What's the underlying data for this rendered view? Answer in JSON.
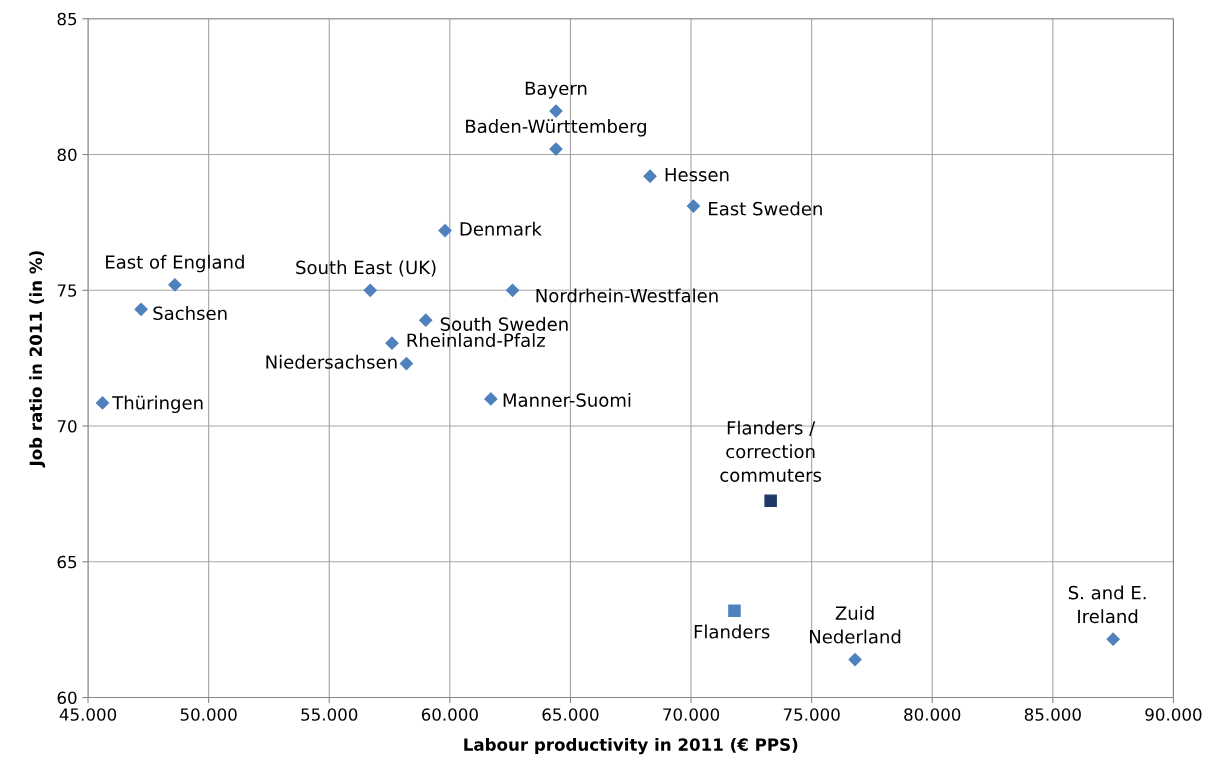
{
  "chart_data": {
    "type": "scatter",
    "xlabel": "Labour productivity in 2011 (€ PPS)",
    "ylabel": "Job ratio in 2011 (in %)",
    "xlim": [
      45000,
      90000
    ],
    "ylim": [
      60,
      85
    ],
    "xticks": [
      {
        "value": 45000,
        "label": "45.000"
      },
      {
        "value": 50000,
        "label": "50.000"
      },
      {
        "value": 55000,
        "label": "55.000"
      },
      {
        "value": 60000,
        "label": "60.000"
      },
      {
        "value": 65000,
        "label": "65.000"
      },
      {
        "value": 70000,
        "label": "70.000"
      },
      {
        "value": 75000,
        "label": "75.000"
      },
      {
        "value": 80000,
        "label": "80.000"
      },
      {
        "value": 85000,
        "label": "85.000"
      },
      {
        "value": 90000,
        "label": "90.000"
      }
    ],
    "yticks": [
      60,
      65,
      70,
      75,
      80,
      85
    ],
    "grid": true,
    "series": [
      {
        "color": "#4f81bd",
        "marker": "diamond",
        "x": [
          64400,
          64400,
          68300,
          70100,
          59800,
          48600,
          47200,
          56700,
          62600,
          59000,
          57600,
          58200,
          45600,
          61700,
          76800,
          87500
        ],
        "values": [
          81.6,
          80.2,
          79.2,
          78.1,
          77.2,
          75.2,
          74.3,
          75.0,
          75.0,
          73.9,
          73.05,
          72.3,
          70.85,
          71.0,
          61.4,
          62.15
        ]
      },
      {
        "color": "#4f81bd",
        "marker": "square",
        "x": [
          71800
        ],
        "values": [
          63.2
        ]
      },
      {
        "color": "#1f3864",
        "marker": "square",
        "x": [
          73300
        ],
        "values": [
          67.25
        ]
      }
    ],
    "annotations": [
      {
        "text": "Bayern",
        "x": 64400,
        "y": 81.6
      },
      {
        "text": "Baden-Württemberg",
        "x": 64400,
        "y": 80.2
      },
      {
        "text": "Hessen",
        "x": 68300,
        "y": 79.2
      },
      {
        "text": "East Sweden",
        "x": 70100,
        "y": 78.1
      },
      {
        "text": "Denmark",
        "x": 59800,
        "y": 77.2
      },
      {
        "text": "East of England",
        "x": 48600,
        "y": 75.2
      },
      {
        "text": "Sachsen",
        "x": 47200,
        "y": 74.3
      },
      {
        "text": "South East (UK)",
        "x": 56700,
        "y": 75.0
      },
      {
        "text": "Nordrhein-Westfalen",
        "x": 62600,
        "y": 75.0
      },
      {
        "text": "South Sweden",
        "x": 59000,
        "y": 73.9
      },
      {
        "text": "Rheinland-Pfalz",
        "x": 57600,
        "y": 73.05
      },
      {
        "text": "Niedersachsen",
        "x": 58200,
        "y": 72.3
      },
      {
        "text": "Thüringen",
        "x": 45600,
        "y": 70.85
      },
      {
        "text": "Manner-Suomi",
        "x": 61700,
        "y": 71.0
      },
      {
        "text": "Zuid\nNederland",
        "x": 76800,
        "y": 61.4
      },
      {
        "text": "S. and E.\nIreland",
        "x": 87500,
        "y": 62.15
      },
      {
        "text": "Flanders",
        "x": 71800,
        "y": 63.2
      },
      {
        "text": "Flanders /\ncorrection\ncommuters",
        "x": 73300,
        "y": 67.25
      }
    ]
  }
}
